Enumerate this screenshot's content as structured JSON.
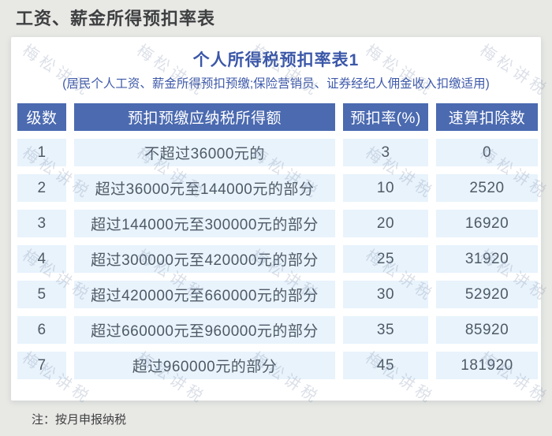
{
  "page": {
    "title": "工资、薪金所得预扣率表",
    "note": "注：按月申报纳税"
  },
  "card": {
    "title": "个人所得税预扣率表1",
    "subtitle": "(居民个人工资、薪金所得预扣预缴;保险营销员、证券经纪人佣金收入扣缴适用)"
  },
  "watermark": {
    "text": "梅松讲税"
  },
  "table": {
    "headers": [
      "级数",
      "预扣预缴应纳税所得额",
      "预扣率(%)",
      "速算扣除数"
    ],
    "rows": [
      [
        "1",
        "不超过36000元的",
        "3",
        "0"
      ],
      [
        "2",
        "超过36000元至144000元的部分",
        "10",
        "2520"
      ],
      [
        "3",
        "超过144000元至300000元的部分",
        "20",
        "16920"
      ],
      [
        "4",
        "超过300000元至420000元的部分",
        "25",
        "31920"
      ],
      [
        "5",
        "超过420000元至660000元的部分",
        "30",
        "52920"
      ],
      [
        "6",
        "超过660000元至960000元的部分",
        "35",
        "85920"
      ],
      [
        "7",
        "超过960000元的部分",
        "45",
        "181920"
      ]
    ]
  },
  "colors": {
    "page_background": "#e8e9e5",
    "card_background": "#ffffff",
    "header_cell": "#4b6ab0",
    "body_cell": "#e8f3fc",
    "title_blue": "#3b57a8",
    "body_text": "#4e5a66"
  }
}
